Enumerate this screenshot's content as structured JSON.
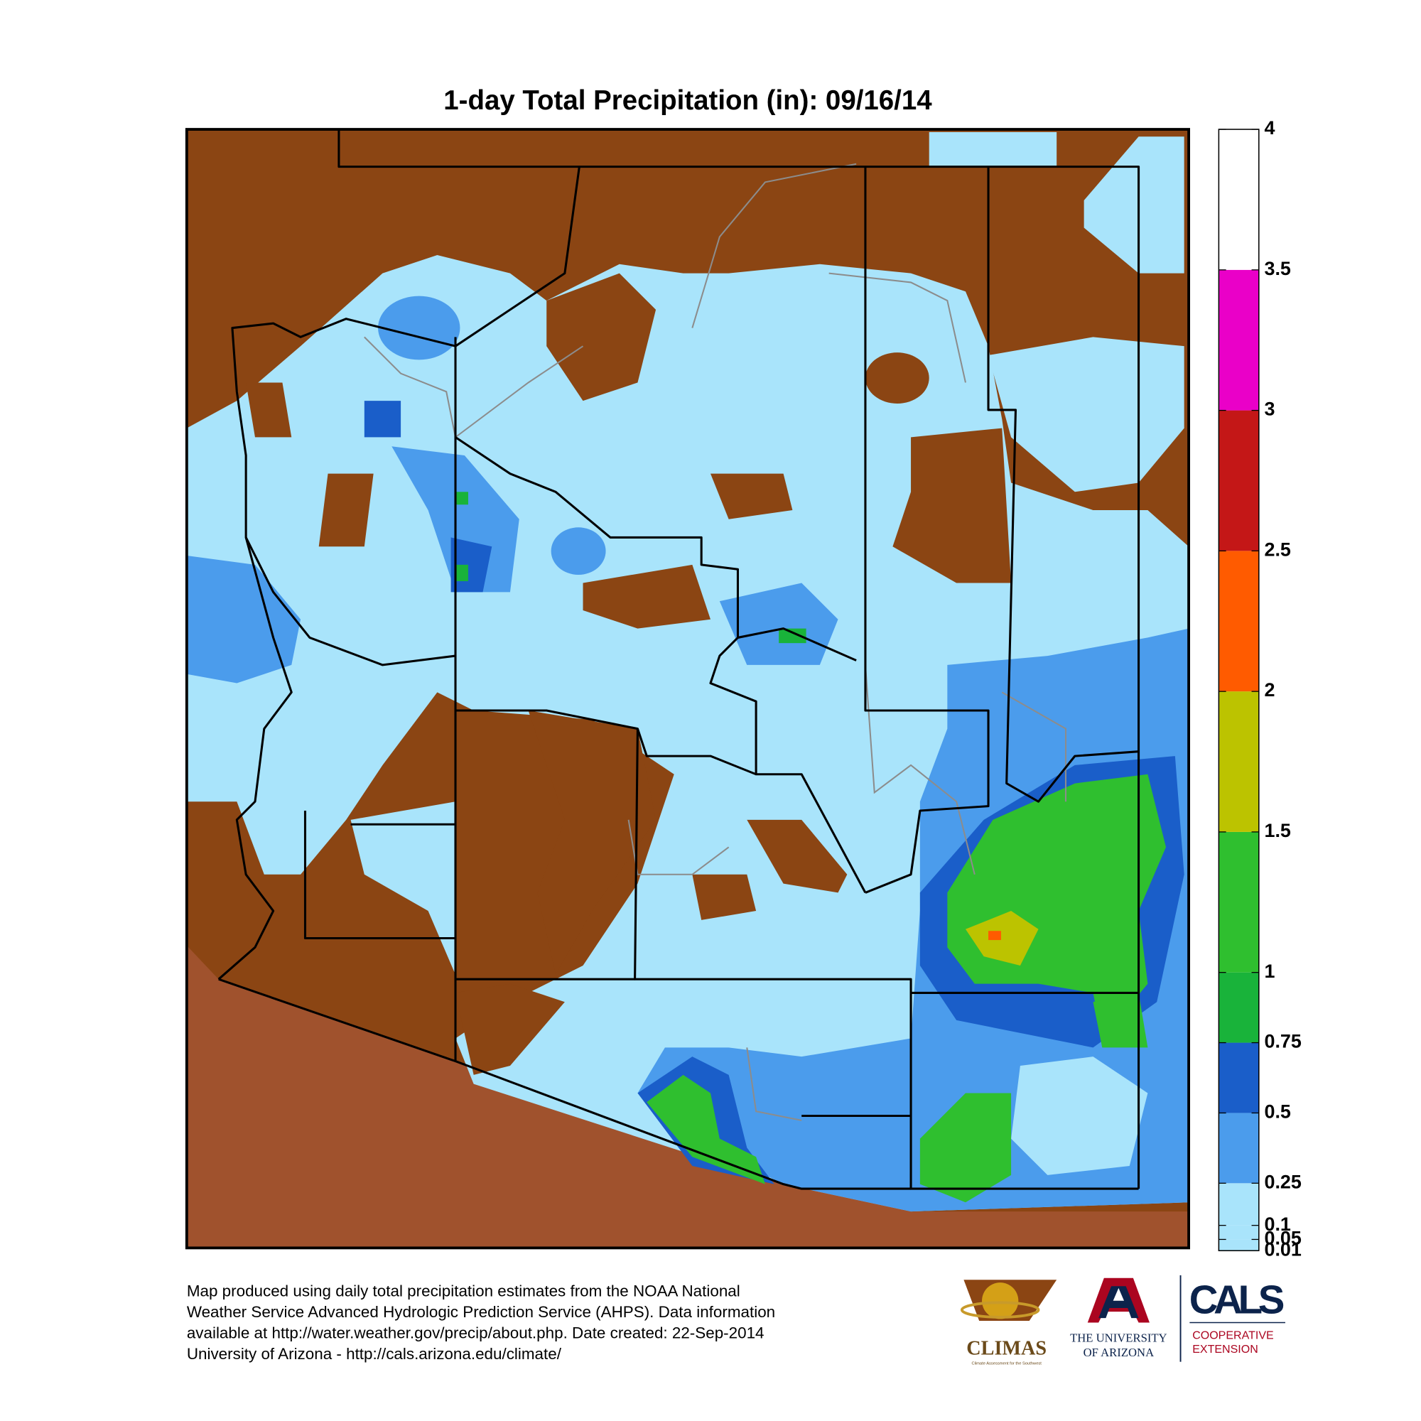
{
  "title": "1-day Total Precipitation (in): 09/16/14",
  "legend": {
    "type": "colorbar",
    "lim": [
      0.01,
      4
    ],
    "ticks": [
      0.01,
      0.05,
      0.1,
      0.25,
      0.5,
      0.75,
      1,
      1.5,
      2,
      2.5,
      3,
      3.5,
      4
    ],
    "colors": [
      "#a9e4fb",
      "#a9e4fb",
      "#a9e4fb",
      "#4b9cec",
      "#1a5ec9",
      "#19b33a",
      "#2fbf2f",
      "#bcc300",
      "#ff5b00",
      "#c41717",
      "#ea00c8",
      "#ffffff"
    ]
  },
  "footer": {
    "lines": [
      "Map produced using daily total precipitation estimates from the NOAA National",
      "Weather Service Advanced Hydrologic Prediction Service (AHPS). Data information",
      "available at http://water.weather.gov/precip/about.php. Date created: 22-Sep-2014",
      "University of Arizona - http://cals.arizona.edu/climate/"
    ]
  },
  "logos": {
    "climas": "CLIMAS",
    "climas_tagline": "Climate Assessment for the Southwest",
    "university": [
      "THE UNIVERSITY",
      "OF ARIZONA"
    ],
    "cals": "CALS",
    "extension": [
      "COOPERATIVE",
      "EXTENSION"
    ]
  }
}
